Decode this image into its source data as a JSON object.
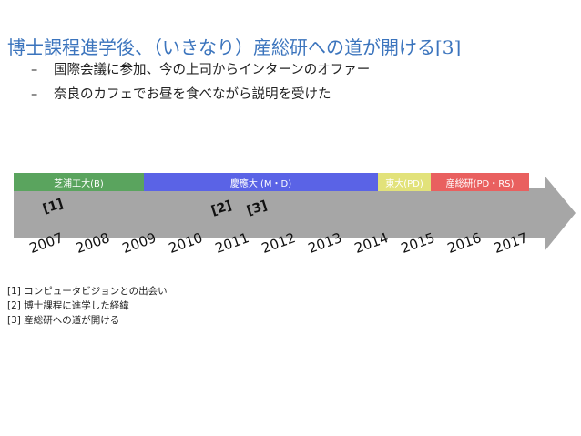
{
  "slide": {
    "title_main": "博士課程進学後、（いきなり）産総研への道が開ける",
    "title_ref": "[3]",
    "bullets": [
      "国際会議に参加、今の上司からインターンのオファー",
      "奈良のカフェでお昼を食べながら説明を受けた"
    ],
    "bullet_dash": "–"
  },
  "timeline": {
    "segments": [
      {
        "label": "芝浦工大(B)",
        "color": "#5aa45e"
      },
      {
        "label": "慶應大 (M・D)",
        "color": "#5a63e6"
      },
      {
        "label": "東大(PD)",
        "color": "#e2e27a"
      },
      {
        "label": "産総研(PD・RS)",
        "color": "#e9605f"
      }
    ],
    "years": [
      "2007",
      "2008",
      "2009",
      "2010",
      "2011",
      "2012",
      "2013",
      "2014",
      "2015",
      "2016",
      "2017"
    ],
    "markers": [
      "[1]",
      "[2]",
      "[3]"
    ],
    "arrow_color": "#a6a6a6"
  },
  "references": [
    "[1] コンピュータビジョンとの出会い",
    "[2] 博士課程に進学した経緯",
    "[3] 産総研への道が開ける"
  ]
}
